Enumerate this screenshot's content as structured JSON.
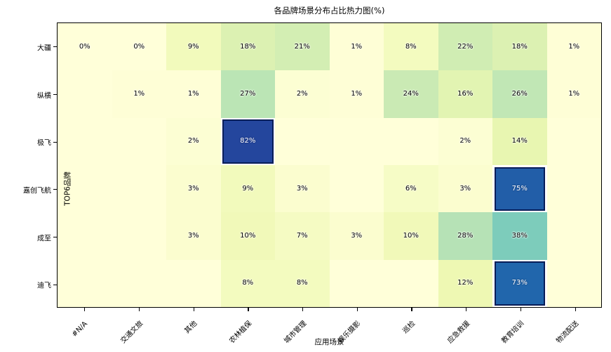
{
  "chart_data": {
    "type": "heatmap",
    "title": "各品牌场景分布占比热力图(%)",
    "xlabel": "应用场景",
    "ylabel": "TOP6品牌",
    "x_categories": [
      "#N/A",
      "交通文旅",
      "其他",
      "农林植保",
      "城市管理",
      "娱乐摄影",
      "巡检",
      "应急救援",
      "教育培训",
      "物流配送"
    ],
    "y_categories": [
      "大疆",
      "纵横",
      "极飞",
      "嘉创飞航",
      "成至",
      "迪飞"
    ],
    "values": [
      [
        0,
        0,
        9,
        18,
        21,
        1,
        8,
        22,
        18,
        1
      ],
      [
        null,
        1,
        1,
        27,
        2,
        1,
        24,
        16,
        26,
        1
      ],
      [
        null,
        null,
        2,
        82,
        null,
        null,
        null,
        2,
        14,
        null
      ],
      [
        null,
        null,
        3,
        9,
        3,
        null,
        6,
        3,
        75,
        null
      ],
      [
        null,
        null,
        3,
        10,
        7,
        3,
        10,
        28,
        38,
        null
      ],
      [
        null,
        null,
        null,
        8,
        8,
        null,
        null,
        12,
        73,
        null
      ]
    ],
    "value_suffix": "%",
    "colormap": "YlGnBu",
    "colormap_stops": [
      [
        0.0,
        "#ffffd9"
      ],
      [
        0.125,
        "#edf8b1"
      ],
      [
        0.25,
        "#c7e9b4"
      ],
      [
        0.375,
        "#7fcdbb"
      ],
      [
        0.5,
        "#41b6c4"
      ],
      [
        0.625,
        "#1d91c0"
      ],
      [
        0.75,
        "#225ea8"
      ],
      [
        0.875,
        "#253494"
      ],
      [
        1.0,
        "#081d58"
      ]
    ],
    "vmin": 0,
    "vmax": 100,
    "highlight_min": 70,
    "highlight_border_color": "#081d58",
    "legend": "none",
    "grid": false
  }
}
